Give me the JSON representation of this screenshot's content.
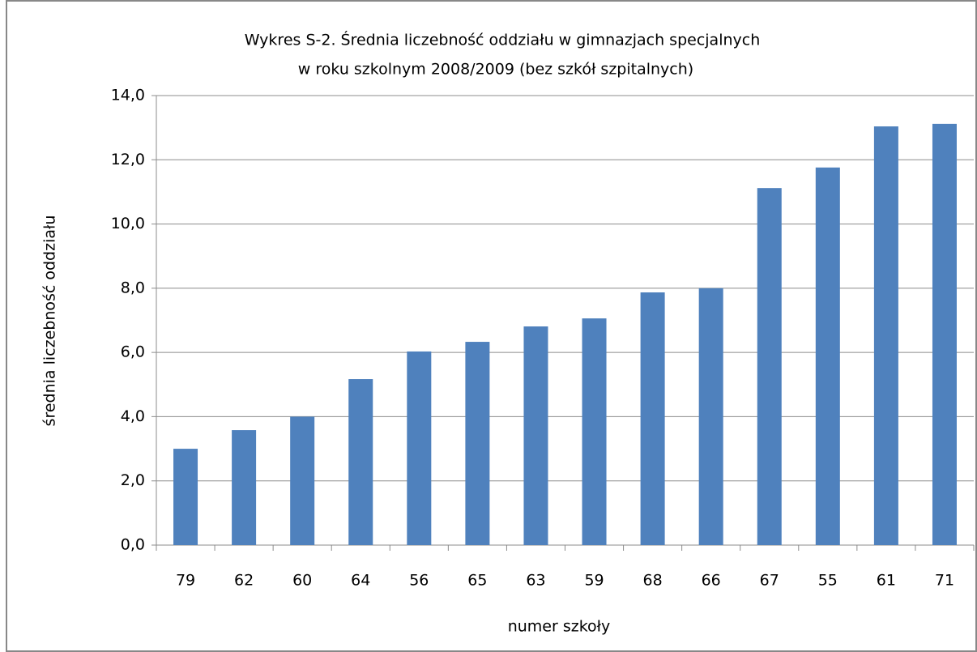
{
  "chart_data": {
    "type": "bar",
    "title": "Wykres S-2. Średnia liczebność oddziału w gimnazjach specjalnych",
    "subtitle": "w roku szkolnym 2008/2009 (bez szkół szpitalnych)",
    "x_label": "numer szkoły",
    "y_label": "średnia liczebność oddziału",
    "categories": [
      "79",
      "62",
      "60",
      "64",
      "56",
      "65",
      "63",
      "59",
      "68",
      "66",
      "67",
      "55",
      "61",
      "71"
    ],
    "values": [
      3.0,
      3.58,
      4.0,
      5.17,
      6.03,
      6.33,
      6.81,
      7.06,
      7.87,
      8.0,
      11.12,
      11.76,
      13.04,
      13.12
    ],
    "color": "#4f81bd",
    "ylim": [
      0,
      14
    ],
    "yticks": [
      {
        "value": 0,
        "label": "0,0"
      },
      {
        "value": 2,
        "label": "2,0"
      },
      {
        "value": 4,
        "label": "4,0"
      },
      {
        "value": 6,
        "label": "6,0"
      },
      {
        "value": 8,
        "label": "8,0"
      },
      {
        "value": 10,
        "label": "10,0"
      },
      {
        "value": 12,
        "label": "12,0"
      },
      {
        "value": 14,
        "label": "14,0"
      }
    ],
    "grid": true
  }
}
